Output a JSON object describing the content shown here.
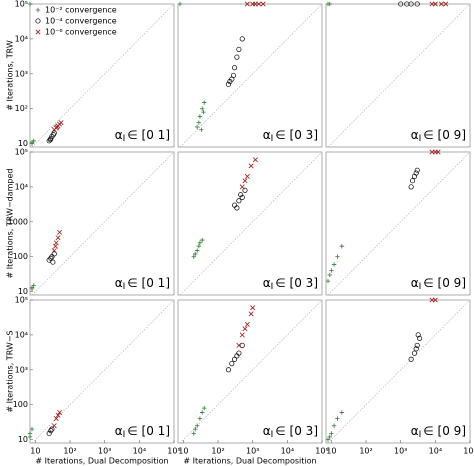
{
  "chart_data": [
    {
      "type": "scatter",
      "xscale": "log",
      "yscale": "log",
      "xlim": [
        7,
        100000
      ],
      "ylim": [
        8,
        100000
      ],
      "ylabel": "# Iterations, TRW",
      "yticks": [
        10,
        {
          "value": 100,
          "label": "10²"
        },
        {
          "value": 1000,
          "label": "10³"
        },
        {
          "value": 10000,
          "label": "10⁴"
        },
        {
          "value": 100000,
          "label": "10⁵"
        }
      ],
      "annotation": {
        "symbol": "α",
        "sub": "I",
        "range": "∈ [0 1]"
      },
      "legend": "upper left",
      "series": [
        {
          "name": "10⁻² convergence",
          "color": "#2e7d32",
          "marker": "+",
          "x": [
            8,
            9,
            8,
            7
          ],
          "values": [
            10,
            12,
            11,
            100000
          ]
        },
        {
          "name": "10⁻⁴ convergence",
          "color": "#000000",
          "marker": "o",
          "x": [
            25,
            28,
            30,
            33,
            35,
            27
          ],
          "values": [
            12,
            14,
            16,
            18,
            20,
            13
          ]
        },
        {
          "name": "10⁻⁶ convergence",
          "color": "#a01818",
          "marker": "x",
          "x": [
            35,
            40,
            45,
            50,
            55,
            42
          ],
          "values": [
            25,
            28,
            32,
            36,
            40,
            30
          ]
        }
      ]
    },
    {
      "type": "scatter",
      "xscale": "log",
      "yscale": "log",
      "xlim": [
        7,
        100000
      ],
      "ylim": [
        8,
        100000
      ],
      "annotation": {
        "symbol": "α",
        "sub": "I",
        "range": "∈ [0 3]"
      },
      "series": [
        {
          "color": "#2e7d32",
          "marker": "+",
          "x": [
            25,
            30,
            35,
            28,
            40,
            33,
            38,
            8
          ],
          "values": [
            30,
            60,
            100,
            40,
            150,
            25,
            80,
            100000
          ]
        },
        {
          "color": "#000000",
          "marker": "o",
          "x": [
            200,
            250,
            300,
            350,
            400,
            500,
            280,
            220
          ],
          "values": [
            500,
            700,
            1500,
            3000,
            5000,
            10000,
            900,
            600
          ]
        },
        {
          "color": "#a01818",
          "marker": "x",
          "x": [
            700,
            1000,
            1500,
            2000,
            1200
          ],
          "values": [
            100000,
            100000,
            100000,
            100000,
            100000
          ]
        }
      ]
    },
    {
      "type": "scatter",
      "xscale": "log",
      "yscale": "log",
      "xlim": [
        7,
        100000
      ],
      "ylim": [
        8,
        100000
      ],
      "annotation": {
        "symbol": "α",
        "sub": "I",
        "range": "∈ [0 9]"
      },
      "series": [
        {
          "color": "#2e7d32",
          "marker": "+",
          "x": [
            8,
            9
          ],
          "values": [
            100000,
            100000
          ]
        },
        {
          "color": "#000000",
          "marker": "o",
          "x": [
            1000,
            1500,
            2000,
            3000
          ],
          "values": [
            100000,
            100000,
            100000,
            100000
          ]
        },
        {
          "color": "#a01818",
          "marker": "x",
          "x": [
            8000,
            10000,
            15000,
            20000
          ],
          "values": [
            100000,
            100000,
            100000,
            100000
          ]
        }
      ]
    },
    {
      "type": "scatter",
      "xscale": "log",
      "yscale": "log",
      "xlim": [
        7,
        100000
      ],
      "ylim": [
        8,
        100000
      ],
      "ylabel": "# Iterations, TRW−damped",
      "yticks": [
        10,
        100,
        1000,
        {
          "value": 10000,
          "label": "10⁴"
        },
        {
          "value": 100000,
          "label": "10⁵"
        }
      ],
      "annotation": {
        "symbol": "α",
        "sub": "I",
        "range": "∈ [0 1]"
      },
      "series": [
        {
          "color": "#2e7d32",
          "marker": "+",
          "x": [
            8,
            9,
            8
          ],
          "values": [
            12,
            15,
            13
          ]
        },
        {
          "color": "#000000",
          "marker": "o",
          "x": [
            25,
            30,
            35,
            28,
            32
          ],
          "values": [
            80,
            100,
            120,
            90,
            70
          ]
        },
        {
          "color": "#a01818",
          "marker": "x",
          "x": [
            35,
            40,
            45,
            50,
            38
          ],
          "values": [
            150,
            250,
            350,
            500,
            200
          ]
        }
      ]
    },
    {
      "type": "scatter",
      "xscale": "log",
      "yscale": "log",
      "xlim": [
        7,
        100000
      ],
      "ylim": [
        8,
        100000
      ],
      "annotation": {
        "symbol": "α",
        "sub": "I",
        "range": "∈ [0 3]"
      },
      "series": [
        {
          "color": "#2e7d32",
          "marker": "+",
          "x": [
            20,
            25,
            30,
            35,
            22,
            28
          ],
          "values": [
            100,
            150,
            250,
            300,
            120,
            200
          ]
        },
        {
          "color": "#000000",
          "marker": "o",
          "x": [
            300,
            400,
            500,
            350,
            450,
            600
          ],
          "values": [
            3000,
            4000,
            5000,
            2500,
            6000,
            8000
          ]
        },
        {
          "color": "#a01818",
          "marker": "x",
          "x": [
            500,
            700,
            900,
            1200,
            600
          ],
          "values": [
            10000,
            20000,
            40000,
            60000,
            15000
          ]
        }
      ]
    },
    {
      "type": "scatter",
      "xscale": "log",
      "yscale": "log",
      "xlim": [
        7,
        100000
      ],
      "ylim": [
        8,
        100000
      ],
      "annotation": {
        "symbol": "α",
        "sub": "I",
        "range": "∈ [0 9]"
      },
      "series": [
        {
          "color": "#2e7d32",
          "marker": "+",
          "x": [
            8,
            10,
            12,
            15,
            20,
            9
          ],
          "values": [
            20,
            40,
            60,
            100,
            200,
            30
          ]
        },
        {
          "color": "#000000",
          "marker": "o",
          "x": [
            2000,
            2500,
            3000,
            2200,
            2800
          ],
          "values": [
            10000,
            20000,
            30000,
            15000,
            25000
          ]
        },
        {
          "color": "#a01818",
          "marker": "x",
          "x": [
            8000,
            10000,
            12000
          ],
          "values": [
            100000,
            100000,
            100000
          ]
        }
      ]
    },
    {
      "type": "scatter",
      "xscale": "log",
      "yscale": "log",
      "xlim": [
        7,
        100000
      ],
      "ylim": [
        8,
        100000
      ],
      "ylabel": "# Iterations, TRW−S",
      "xlabel": "# Iterations, Dual Decomposition",
      "xticks": [
        10,
        {
          "value": 100,
          "label": "10²"
        },
        {
          "value": 1000,
          "label": "10³"
        },
        {
          "value": 10000,
          "label": "10⁴"
        },
        {
          "value": 100000,
          "label": "10⁵"
        }
      ],
      "yticks": [
        10,
        100,
        {
          "value": 1000,
          "label": "10³"
        },
        {
          "value": 10000,
          "label": "10⁴"
        },
        {
          "value": 100000,
          "label": "10⁵"
        }
      ],
      "annotation": {
        "symbol": "α",
        "sub": "I",
        "range": "∈ [0 1]"
      },
      "series": [
        {
          "color": "#2e7d32",
          "marker": "+",
          "x": [
            7,
            8,
            7
          ],
          "values": [
            12,
            20,
            15
          ]
        },
        {
          "color": "#000000",
          "marker": "o",
          "x": [
            25,
            30,
            28
          ],
          "values": [
            15,
            20,
            18
          ]
        },
        {
          "color": "#a01818",
          "marker": "x",
          "x": [
            35,
            40,
            50,
            45
          ],
          "values": [
            25,
            40,
            60,
            50
          ]
        }
      ]
    },
    {
      "type": "scatter",
      "xscale": "log",
      "yscale": "log",
      "xlim": [
        7,
        100000
      ],
      "ylim": [
        8,
        100000
      ],
      "xlabel": "# Iterations, Dual Decomposition",
      "xticks": [
        10,
        {
          "value": 100,
          "label": "10²"
        },
        {
          "value": 1000,
          "label": "10³"
        },
        {
          "value": 10000,
          "label": "10⁴"
        },
        {
          "value": 100000,
          "label": "10⁵"
        }
      ],
      "annotation": {
        "symbol": "α",
        "sub": "I",
        "range": "∈ [0 3]"
      },
      "series": [
        {
          "color": "#2e7d32",
          "marker": "+",
          "x": [
            20,
            25,
            30,
            35,
            22,
            40
          ],
          "values": [
            15,
            25,
            40,
            60,
            20,
            80
          ]
        },
        {
          "color": "#000000",
          "marker": "o",
          "x": [
            200,
            300,
            400,
            500,
            250,
            350
          ],
          "values": [
            1000,
            2000,
            3000,
            5000,
            1500,
            2500
          ]
        },
        {
          "color": "#a01818",
          "marker": "x",
          "x": [
            400,
            500,
            700,
            900,
            1000,
            600
          ],
          "values": [
            5000,
            10000,
            20000,
            40000,
            60000,
            15000
          ]
        }
      ]
    },
    {
      "type": "scatter",
      "xscale": "log",
      "yscale": "log",
      "xlim": [
        7,
        100000
      ],
      "ylim": [
        8,
        100000
      ],
      "xticks": [
        10,
        {
          "value": 100,
          "label": "10²"
        },
        {
          "value": 1000,
          "label": "10³"
        },
        {
          "value": 10000,
          "label": "10⁴"
        },
        {
          "value": 100000,
          "label": "10⁵"
        }
      ],
      "annotation": {
        "symbol": "α",
        "sub": "I",
        "range": "∈ [0 9]"
      },
      "series": [
        {
          "color": "#2e7d32",
          "marker": "+",
          "x": [
            8,
            10,
            12,
            15,
            20,
            9
          ],
          "values": [
            10,
            15,
            25,
            40,
            60,
            12
          ]
        },
        {
          "color": "#000000",
          "marker": "o",
          "x": [
            2000,
            2500,
            3000,
            3500,
            2800,
            3200
          ],
          "values": [
            2000,
            3000,
            5000,
            8000,
            4000,
            10000
          ]
        },
        {
          "color": "#a01818",
          "marker": "x",
          "x": [
            8000,
            10000
          ],
          "values": [
            100000,
            100000
          ]
        }
      ]
    }
  ]
}
